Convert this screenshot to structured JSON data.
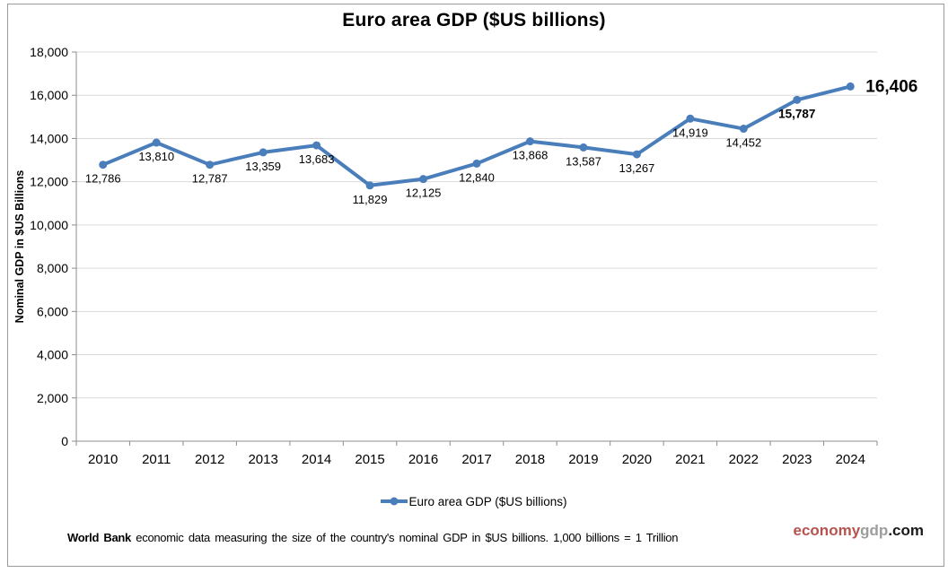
{
  "title": "Euro area GDP ($US billions)",
  "chart_data": {
    "type": "line",
    "title": "Euro area GDP ($US billions)",
    "xlabel": "",
    "ylabel": "Nominal GDP in $US Billions",
    "categories": [
      "2010",
      "2011",
      "2012",
      "2013",
      "2014",
      "2015",
      "2016",
      "2017",
      "2018",
      "2019",
      "2020",
      "2021",
      "2022",
      "2023",
      "2024"
    ],
    "series": [
      {
        "name": "Euro area GDP ($US billions)",
        "values": [
          12786,
          13810,
          12787,
          13359,
          13683,
          11829,
          12125,
          12840,
          13868,
          13587,
          13267,
          14919,
          14452,
          15787,
          16406
        ]
      }
    ],
    "data_labels": [
      "12,786",
      "13,810",
      "12,787",
      "13,359",
      "13,683",
      "11,829",
      "12,125",
      "12,840",
      "13,868",
      "13,587",
      "13,267",
      "14,919",
      "14,452",
      "15,787",
      "16,406"
    ],
    "bold_label_indices": [
      13
    ],
    "callout_label_index": 14,
    "ylim": [
      0,
      18000
    ],
    "yticks": [
      {
        "value": 0,
        "label": "0"
      },
      {
        "value": 2000,
        "label": "2,000"
      },
      {
        "value": 4000,
        "label": "4,000"
      },
      {
        "value": 6000,
        "label": "6,000"
      },
      {
        "value": 8000,
        "label": "8,000"
      },
      {
        "value": 10000,
        "label": "10,000"
      },
      {
        "value": 12000,
        "label": "12,000"
      },
      {
        "value": 14000,
        "label": "14,000"
      },
      {
        "value": 16000,
        "label": "16,000"
      },
      {
        "value": 18000,
        "label": "18,000"
      }
    ],
    "grid": true,
    "legend_position": "bottom"
  },
  "legend": {
    "label": "Euro area GDP ($US billions)"
  },
  "footer": {
    "source_bold": "World Bank",
    "source_rest": " economic data  measuring the size of the country's nominal GDP in $US billions. 1,000 billions = 1 Trillion",
    "brand_part1": "economy",
    "brand_part2": "gdp",
    "brand_part3": ".com"
  },
  "colors": {
    "line": "#4a7ebb",
    "grid": "#d9d9d9",
    "axis": "#8c8c8c",
    "brand_red": "#b6534f",
    "brand_gray": "#9d9d9d",
    "brand_black": "#1a1a1a"
  }
}
